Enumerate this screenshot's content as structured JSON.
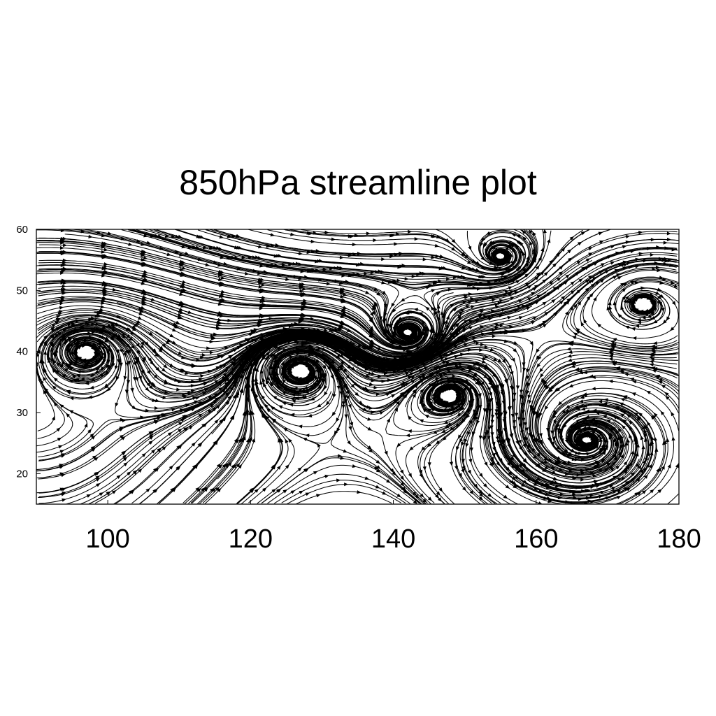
{
  "chart_data": {
    "type": "streamline",
    "title": "850hPa streamline plot",
    "xlabel": "",
    "ylabel": "",
    "xlim": [
      90,
      180
    ],
    "ylim": [
      15,
      60
    ],
    "xticks": [
      100,
      120,
      140,
      160,
      180
    ],
    "yticks": [
      20,
      30,
      40,
      50,
      60
    ],
    "xtick_labels": [
      "100",
      "120",
      "140",
      "160",
      "180"
    ],
    "ytick_labels": [
      "20",
      "30",
      "40",
      "50",
      "60"
    ],
    "color": "#000000",
    "grid": false,
    "features": {
      "cyclones": [
        {
          "lon": 167,
          "lat": 25.5,
          "name": ""
        },
        {
          "lon": 155,
          "lat": 55.5,
          "name": ""
        },
        {
          "lon": 142,
          "lat": 43,
          "name": ""
        }
      ],
      "anticyclones": [
        {
          "lon": 97,
          "lat": 40,
          "name": ""
        },
        {
          "lon": 127,
          "lat": 37,
          "name": ""
        },
        {
          "lon": 148,
          "lat": 33,
          "name": ""
        },
        {
          "lon": 175,
          "lat": 48,
          "name": ""
        }
      ],
      "westerly_jet": {
        "lon_start": 90,
        "lon_end": 180,
        "lat": 52
      }
    }
  }
}
